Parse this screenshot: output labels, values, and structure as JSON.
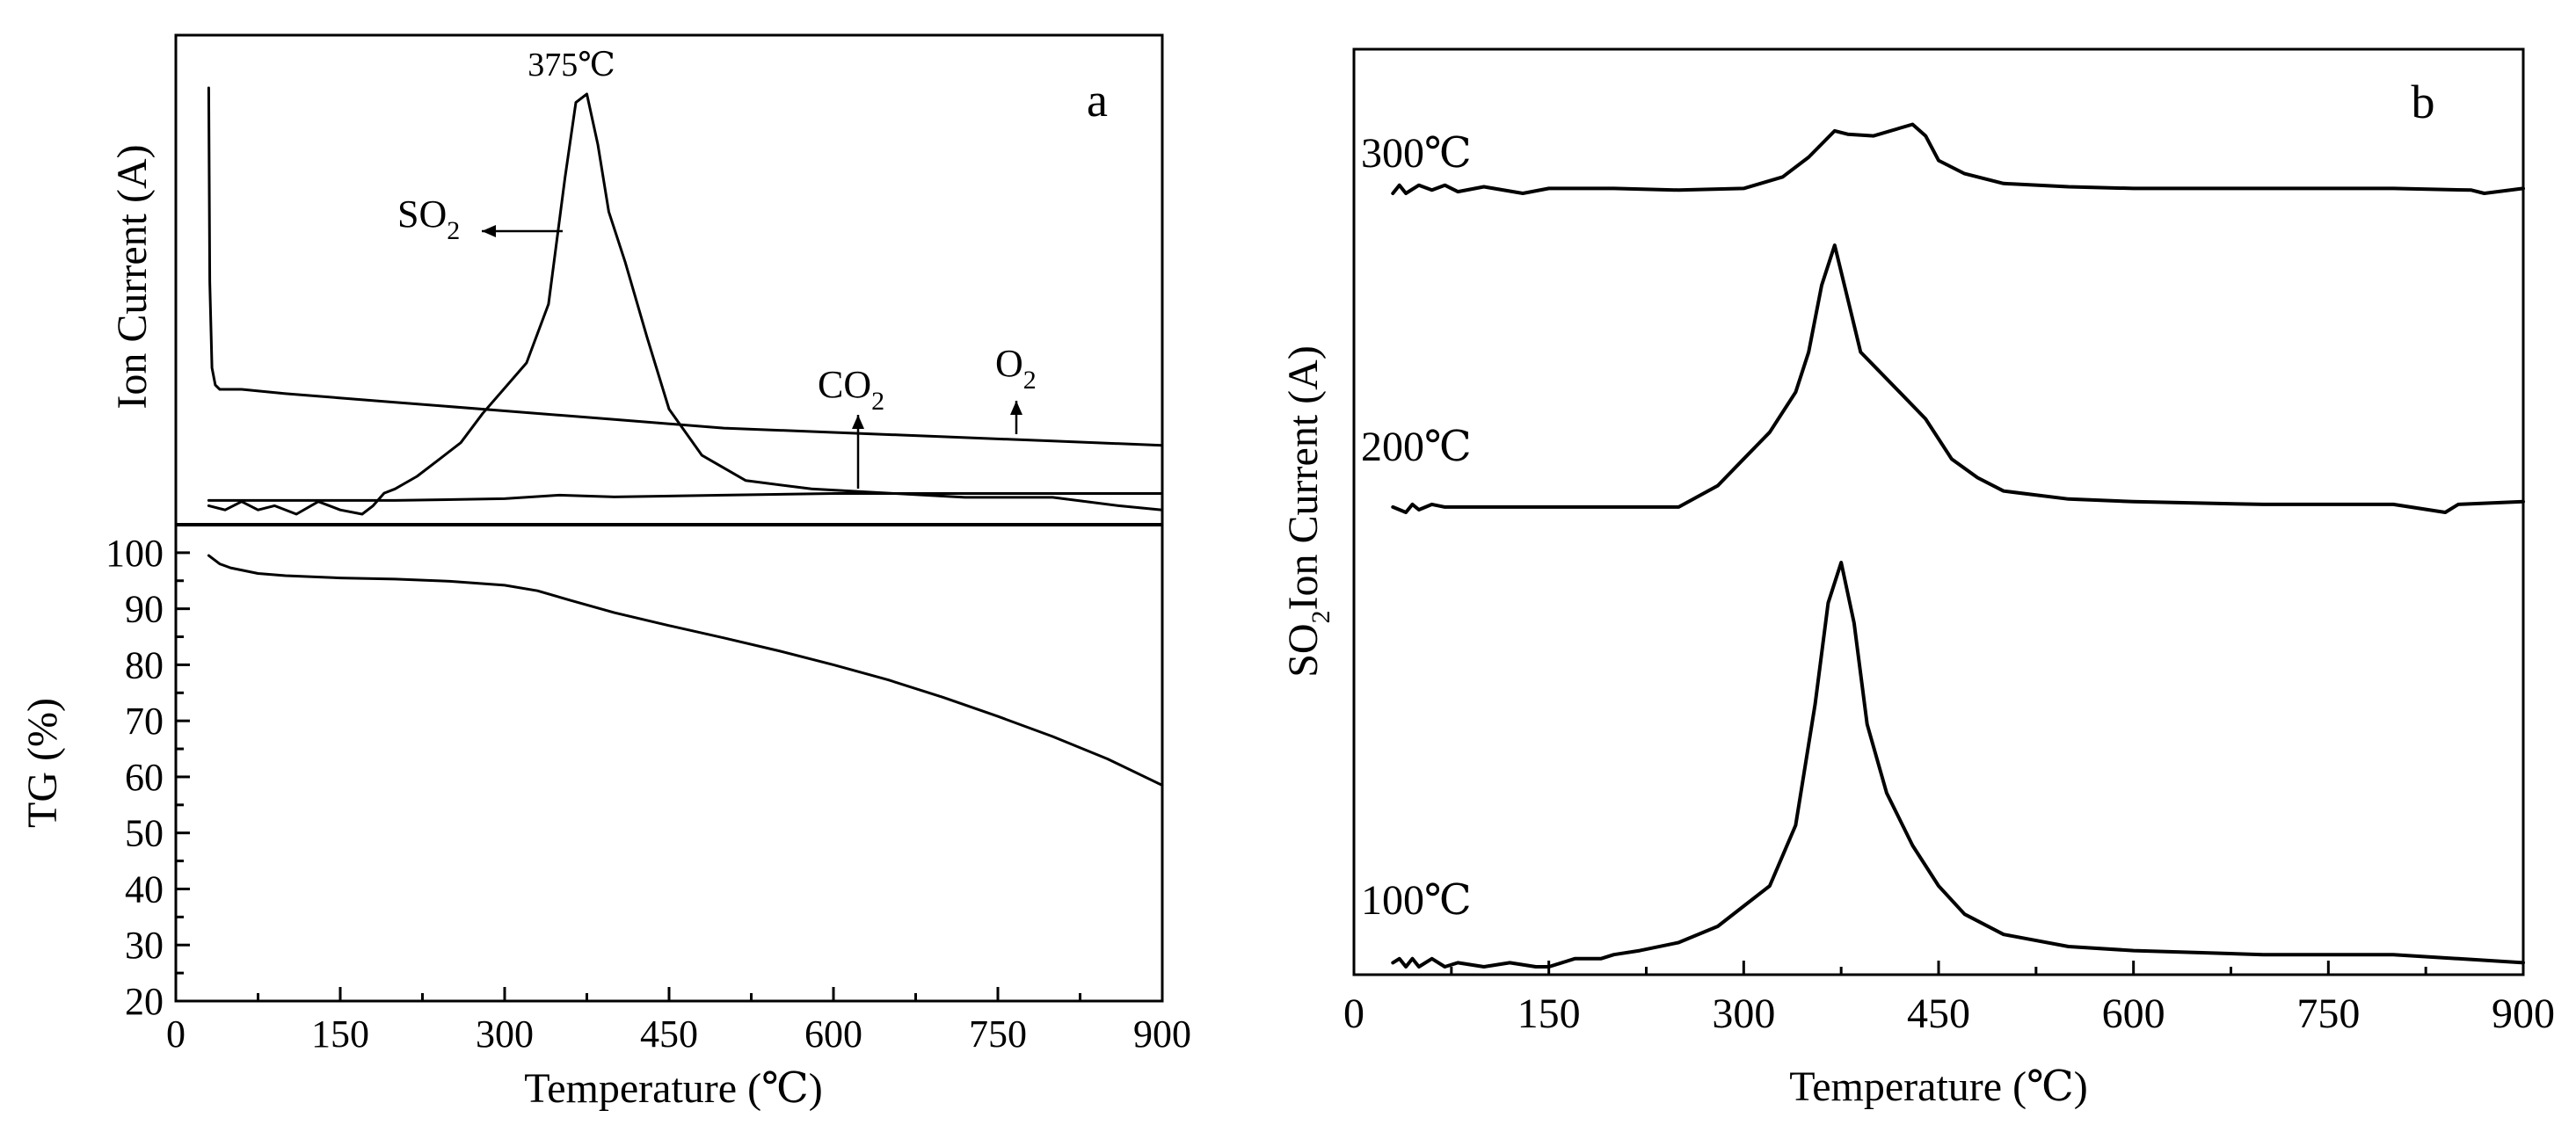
{
  "figure": {
    "panel_a_label": "a",
    "panel_b_label": "b"
  },
  "chart_data": [
    {
      "panel": "a-top",
      "type": "line",
      "ylabel": "Ion Current (A)",
      "xlim": [
        0,
        900
      ],
      "peak_annotation": "375℃",
      "series": [
        {
          "name": "SO2",
          "label_main": "SO",
          "label_sub": "2",
          "arrow": "left",
          "x": [
            30,
            45,
            60,
            75,
            90,
            110,
            130,
            150,
            170,
            180,
            190,
            200,
            220,
            240,
            260,
            280,
            300,
            320,
            340,
            355,
            365,
            375,
            385,
            395,
            410,
            430,
            450,
            480,
            520,
            580,
            650,
            720,
            800,
            860,
            900
          ],
          "y": [
            0.02,
            0.01,
            0.03,
            0.01,
            0.02,
            0.0,
            0.03,
            0.01,
            0.0,
            0.02,
            0.05,
            0.06,
            0.09,
            0.13,
            0.17,
            0.24,
            0.3,
            0.36,
            0.5,
            0.8,
            0.98,
            1.0,
            0.88,
            0.72,
            0.6,
            0.42,
            0.25,
            0.14,
            0.08,
            0.06,
            0.05,
            0.04,
            0.04,
            0.02,
            0.01
          ]
        },
        {
          "name": "CO2",
          "label_main": "CO",
          "label_sub": "2",
          "arrow": "up",
          "x": [
            30,
            100,
            200,
            300,
            350,
            400,
            500,
            600,
            700,
            800,
            900
          ],
          "y": [
            0.07,
            0.07,
            0.07,
            0.075,
            0.085,
            0.08,
            0.085,
            0.09,
            0.09,
            0.09,
            0.09
          ]
        },
        {
          "name": "O2",
          "label_main": "O",
          "label_sub": "2",
          "arrow": "up",
          "x": [
            30,
            31,
            33,
            36,
            40,
            50,
            60,
            100,
            200,
            300,
            400,
            500,
            600,
            700,
            800,
            900
          ],
          "y": [
            1.0,
            0.55,
            0.35,
            0.31,
            0.3,
            0.3,
            0.3,
            0.29,
            0.27,
            0.25,
            0.23,
            0.21,
            0.2,
            0.19,
            0.18,
            0.17
          ]
        }
      ]
    },
    {
      "panel": "a-bottom",
      "type": "line",
      "xlabel": "Temperature (℃)",
      "ylabel": "TG (%)",
      "xlim": [
        0,
        900
      ],
      "ylim": [
        20,
        105
      ],
      "xticks": [
        "0",
        "150",
        "300",
        "450",
        "600",
        "750",
        "900"
      ],
      "yticks": [
        "20",
        "30",
        "40",
        "50",
        "60",
        "70",
        "80",
        "90",
        "100"
      ],
      "series": [
        {
          "name": "TG",
          "x": [
            30,
            40,
            50,
            75,
            100,
            150,
            200,
            250,
            300,
            330,
            360,
            400,
            450,
            500,
            550,
            600,
            650,
            700,
            750,
            800,
            850,
            900
          ],
          "y": [
            99.5,
            98.0,
            97.3,
            96.3,
            95.9,
            95.5,
            95.3,
            94.9,
            94.2,
            93.2,
            91.5,
            89.3,
            87.0,
            84.8,
            82.5,
            80.0,
            77.3,
            74.2,
            70.8,
            67.2,
            63.2,
            58.5
          ]
        }
      ]
    },
    {
      "panel": "b",
      "type": "line",
      "xlabel": "Temperature (℃)",
      "ylabel_prefix": "SO",
      "ylabel_sub": "2",
      "ylabel_rest": "Ion Current (A)",
      "xlim": [
        0,
        900
      ],
      "xticks": [
        "0",
        "150",
        "300",
        "450",
        "600",
        "750",
        "900"
      ],
      "series": [
        {
          "name": "100℃",
          "x": [
            30,
            35,
            40,
            45,
            50,
            60,
            70,
            80,
            100,
            120,
            140,
            150,
            170,
            190,
            200,
            220,
            250,
            280,
            300,
            320,
            340,
            355,
            365,
            375,
            385,
            395,
            410,
            430,
            450,
            470,
            500,
            550,
            600,
            650,
            700,
            750,
            800,
            850,
            900
          ],
          "y": [
            0.01,
            0.02,
            0.0,
            0.02,
            0.0,
            0.02,
            0.0,
            0.01,
            0.0,
            0.01,
            0.0,
            0.0,
            0.02,
            0.02,
            0.03,
            0.04,
            0.06,
            0.1,
            0.15,
            0.2,
            0.35,
            0.65,
            0.9,
            1.0,
            0.85,
            0.6,
            0.43,
            0.3,
            0.2,
            0.13,
            0.08,
            0.05,
            0.04,
            0.035,
            0.03,
            0.03,
            0.03,
            0.02,
            0.01
          ]
        },
        {
          "name": "200℃",
          "x": [
            30,
            40,
            45,
            50,
            60,
            70,
            100,
            150,
            200,
            250,
            280,
            300,
            320,
            340,
            350,
            360,
            370,
            380,
            390,
            400,
            420,
            440,
            460,
            480,
            500,
            550,
            600,
            650,
            700,
            750,
            800,
            840,
            850,
            900
          ],
          "y": [
            0.02,
            0.0,
            0.03,
            0.01,
            0.03,
            0.02,
            0.02,
            0.02,
            0.02,
            0.02,
            0.1,
            0.2,
            0.3,
            0.45,
            0.6,
            0.85,
            1.0,
            0.8,
            0.6,
            0.55,
            0.45,
            0.35,
            0.2,
            0.13,
            0.08,
            0.05,
            0.04,
            0.035,
            0.03,
            0.03,
            0.03,
            0.0,
            0.03,
            0.04
          ]
        },
        {
          "name": "300℃",
          "x": [
            30,
            35,
            40,
            50,
            60,
            70,
            80,
            100,
            130,
            150,
            200,
            250,
            300,
            330,
            350,
            360,
            370,
            380,
            400,
            430,
            440,
            450,
            470,
            500,
            550,
            600,
            650,
            700,
            750,
            800,
            860,
            870,
            900
          ],
          "y": [
            0.0,
            0.05,
            0.0,
            0.05,
            0.02,
            0.05,
            0.01,
            0.04,
            0.0,
            0.03,
            0.03,
            0.02,
            0.03,
            0.1,
            0.22,
            0.3,
            0.38,
            0.36,
            0.35,
            0.42,
            0.35,
            0.2,
            0.12,
            0.06,
            0.04,
            0.03,
            0.03,
            0.03,
            0.03,
            0.03,
            0.02,
            0.0,
            0.03
          ]
        }
      ]
    }
  ]
}
